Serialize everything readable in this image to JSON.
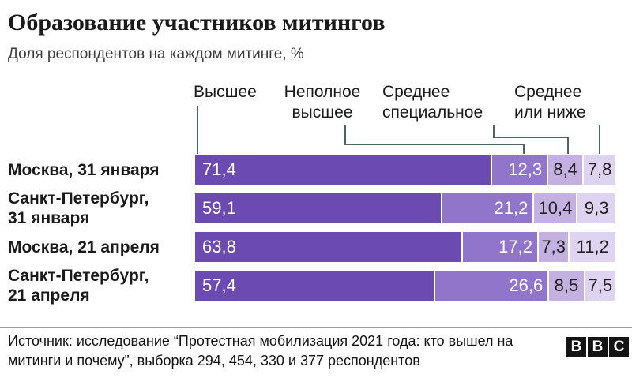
{
  "header": {
    "title": "Образование участников митингов",
    "subtitle": "Доля респондентов на каждом митинге, %"
  },
  "chart_data": {
    "type": "bar",
    "stacked": true,
    "orientation": "horizontal",
    "unit": "%",
    "xlim": [
      0,
      100
    ],
    "legend_labels": [
      "Высшее",
      "Неполное\nвысшее",
      "Среднее\nспециальное",
      "Среднее\nили ниже"
    ],
    "categories": [
      "Москва, 31 января",
      "Санкт-Петербург, 31 января",
      "Москва, 21 апреля",
      "Санкт-Петербург, 21 апреля"
    ],
    "rows": [
      {
        "label": "Москва, 31 января",
        "values": [
          71.4,
          12.3,
          8.4,
          7.8
        ]
      },
      {
        "label": "Санкт-Петербург,\n31 января",
        "values": [
          59.1,
          21.2,
          10.4,
          9.3
        ]
      },
      {
        "label": "Москва, 21 апреля",
        "values": [
          63.8,
          17.2,
          7.3,
          11.2
        ]
      },
      {
        "label": "Санкт-Петербург,\n21 апреля",
        "values": [
          57.4,
          26.6,
          8.5,
          7.5
        ]
      }
    ],
    "series": [
      {
        "name": "Высшее",
        "color": "#6b4ab2",
        "values": [
          71.4,
          59.1,
          63.8,
          57.4
        ]
      },
      {
        "name": "Неполное высшее",
        "color": "#9175cb",
        "values": [
          12.3,
          21.2,
          17.2,
          26.6
        ]
      },
      {
        "name": "Среднее специальное",
        "color": "#c5b0e2",
        "values": [
          8.4,
          10.4,
          7.3,
          8.5
        ]
      },
      {
        "name": "Среднее или ниже",
        "color": "#ded3f0",
        "values": [
          7.8,
          9.3,
          11.2,
          7.5
        ]
      }
    ],
    "value_label_colors": [
      "#ffffff",
      "#ffffff",
      "#222222",
      "#222222"
    ],
    "connector_color": "#4d635e"
  },
  "footer": {
    "source": "Источник: исследование “Протестная мобилизация 2021 года: кто вышел на митинги и почему”, выборка 294, 454, 330 и 377 респондентов",
    "logo_letters": [
      "B",
      "B",
      "C"
    ]
  }
}
